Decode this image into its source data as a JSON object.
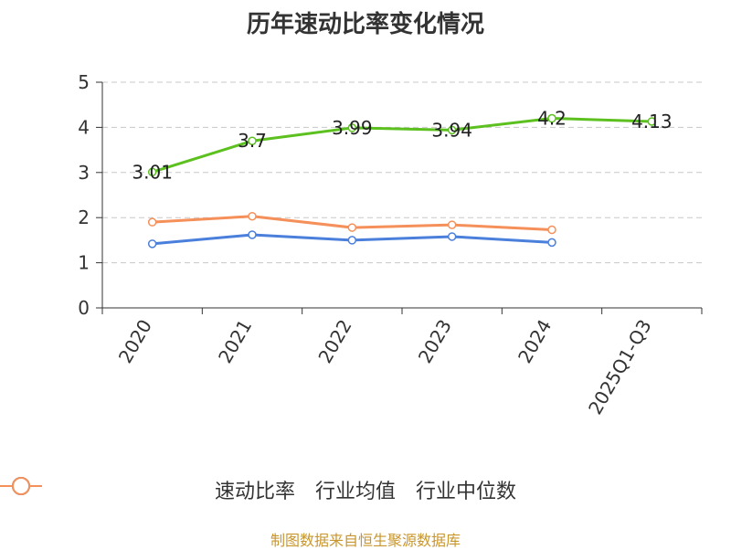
{
  "chart_data": {
    "type": "line",
    "title": "历年速动比率变化情况",
    "categories": [
      "2020",
      "2021",
      "2022",
      "2023",
      "2024",
      "2025Q1-Q3"
    ],
    "ylim": [
      0,
      5
    ],
    "yticks": [
      "0",
      "1",
      "2",
      "3",
      "4",
      "5"
    ],
    "grid": true,
    "legend_position": "bottom",
    "series": [
      {
        "name": "速动比率",
        "color": "#5cc01f",
        "values": [
          3.01,
          3.7,
          3.99,
          3.94,
          4.2,
          4.13
        ],
        "labels": [
          "3.01",
          "3.7",
          "3.99",
          "3.94",
          "4.2",
          "4.13"
        ]
      },
      {
        "name": "行业均值",
        "color": "#4a7fdc",
        "values": [
          1.42,
          1.62,
          1.5,
          1.58,
          1.45,
          null
        ]
      },
      {
        "name": "行业中位数",
        "color": "#f5905a",
        "values": [
          1.9,
          2.03,
          1.78,
          1.84,
          1.73,
          null
        ]
      }
    ]
  },
  "footer": "制图数据来自恒生聚源数据库"
}
